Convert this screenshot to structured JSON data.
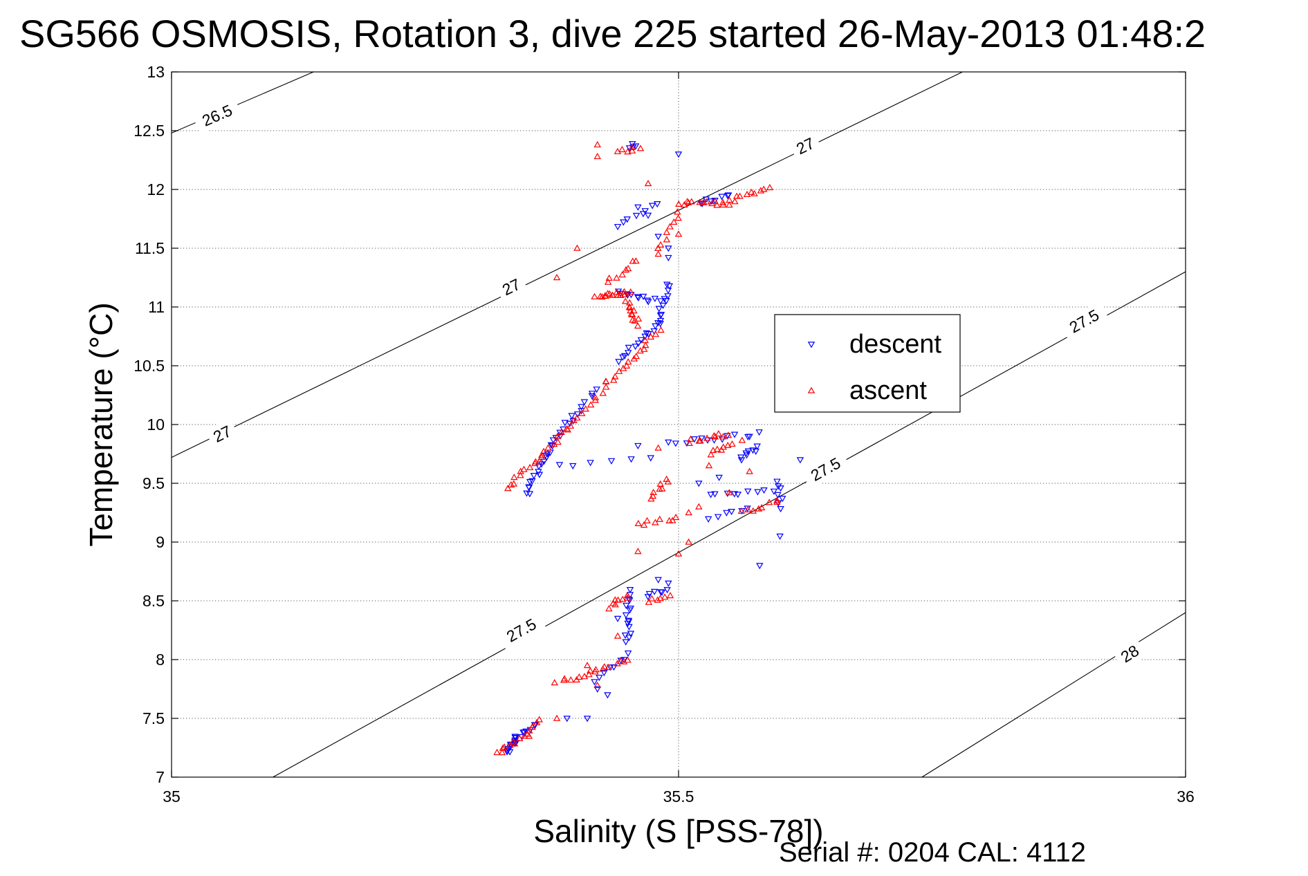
{
  "chart_data": {
    "type": "scatter",
    "title": "SG566 OSMOSIS, Rotation 3, dive 225 started 26-May-2013 01:48:2",
    "xlabel": "Salinity (S [PSS-78])",
    "ylabel": "Temperature (°C)",
    "xlim": [
      35,
      36
    ],
    "ylim": [
      7,
      13
    ],
    "grid": true,
    "x_ticks": [
      35,
      35.5,
      36
    ],
    "x_tick_labels": [
      "35",
      "35.5",
      "36"
    ],
    "y_ticks": [
      7,
      7.5,
      8,
      8.5,
      9,
      9.5,
      10,
      10.5,
      11,
      11.5,
      12,
      12.5,
      13
    ],
    "y_tick_labels": [
      "7",
      "7.5",
      "8",
      "8.5",
      "9",
      "9.5",
      "10",
      "10.5",
      "11",
      "11.5",
      "12",
      "12.5",
      "13"
    ],
    "footer": "Serial #: 0204  CAL: 4112",
    "legend": {
      "placement": "right-center",
      "entries": [
        {
          "name": "descent",
          "color": "#0000ff",
          "marker": "triangle-down"
        },
        {
          "name": "ascent",
          "color": "#ff0000",
          "marker": "triangle-up"
        }
      ]
    },
    "contours": [
      {
        "name": "26.5",
        "line": [
          [
            35,
            12.48
          ],
          [
            35.14,
            13
          ]
        ],
        "labels": [
          {
            "text": "26.5",
            "x": 35.045,
            "y": 12.63
          }
        ]
      },
      {
        "name": "27",
        "line": [
          [
            35,
            9.72
          ],
          [
            35.78,
            13
          ]
        ],
        "labels": [
          {
            "text": "27",
            "x": 35.05,
            "y": 9.92
          },
          {
            "text": "27",
            "x": 35.335,
            "y": 11.17
          },
          {
            "text": "27",
            "x": 35.625,
            "y": 12.37
          }
        ]
      },
      {
        "name": "27.5",
        "line": [
          [
            35.1,
            7
          ],
          [
            36,
            11.3
          ]
        ],
        "labels": [
          {
            "text": "27.5",
            "x": 35.345,
            "y": 8.25
          },
          {
            "text": "27.5",
            "x": 35.645,
            "y": 9.62
          },
          {
            "text": "27.5",
            "x": 35.9,
            "y": 10.88
          }
        ]
      },
      {
        "name": "28",
        "line": [
          [
            35.74,
            7
          ],
          [
            36,
            8.4
          ]
        ],
        "labels": [
          {
            "text": "28",
            "x": 35.945,
            "y": 8.05
          }
        ]
      }
    ],
    "series": [
      {
        "name": "descent",
        "color": "#0000ff",
        "marker": "triangle-down",
        "segments": [
          {
            "from": [
              35.33,
              7.2
            ],
            "to": [
              35.34,
              7.34
            ],
            "n": 14
          },
          {
            "from": [
              35.34,
              7.34
            ],
            "to": [
              35.36,
              7.45
            ],
            "n": 8
          },
          {
            "from": [
              35.42,
              7.82
            ],
            "to": [
              35.45,
              8.05
            ],
            "n": 8
          },
          {
            "from": [
              35.45,
              8.15
            ],
            "to": [
              35.45,
              8.58
            ],
            "n": 16
          },
          {
            "from": [
              35.47,
              8.55
            ],
            "to": [
              35.49,
              8.6
            ],
            "n": 6
          },
          {
            "from": [
              35.35,
              9.4
            ],
            "to": [
              35.37,
              9.75
            ],
            "n": 14
          },
          {
            "from": [
              35.37,
              9.75
            ],
            "to": [
              35.39,
              10.0
            ],
            "n": 10
          },
          {
            "from": [
              35.39,
              10.0
            ],
            "to": [
              35.42,
              10.3
            ],
            "n": 10
          },
          {
            "from": [
              35.44,
              10.55
            ],
            "to": [
              35.48,
              10.85
            ],
            "n": 14
          },
          {
            "from": [
              35.48,
              10.85
            ],
            "to": [
              35.49,
              11.2
            ],
            "n": 12
          },
          {
            "from": [
              35.44,
              11.12
            ],
            "to": [
              35.48,
              11.05
            ],
            "n": 12
          },
          {
            "from": [
              35.44,
              11.7
            ],
            "to": [
              35.48,
              11.88
            ],
            "n": 8
          },
          {
            "from": [
              35.52,
              11.88
            ],
            "to": [
              35.55,
              11.95
            ],
            "n": 8
          },
          {
            "from": [
              35.45,
              12.36
            ],
            "to": [
              35.46,
              12.38
            ],
            "n": 4
          },
          {
            "from": [
              35.38,
              9.65
            ],
            "to": [
              35.47,
              9.7
            ],
            "n": 6
          },
          {
            "from": [
              35.5,
              9.85
            ],
            "to": [
              35.58,
              9.92
            ],
            "n": 12
          },
          {
            "from": [
              35.56,
              9.7
            ],
            "to": [
              35.58,
              9.8
            ],
            "n": 8
          },
          {
            "from": [
              35.53,
              9.4
            ],
            "to": [
              35.6,
              9.45
            ],
            "n": 10
          },
          {
            "from": [
              35.6,
              9.3
            ],
            "to": [
              35.6,
              9.5
            ],
            "n": 6
          },
          {
            "from": [
              35.53,
              9.2
            ],
            "to": [
              35.57,
              9.3
            ],
            "n": 6
          }
        ],
        "points": [
          [
            35.46,
            11.85
          ],
          [
            35.47,
            11.78
          ],
          [
            35.48,
            11.6
          ],
          [
            35.49,
            11.5
          ],
          [
            35.49,
            11.42
          ],
          [
            35.5,
            12.3
          ],
          [
            35.6,
            9.05
          ],
          [
            35.58,
            8.8
          ],
          [
            35.39,
            7.5
          ],
          [
            35.41,
            7.5
          ],
          [
            35.43,
            7.7
          ],
          [
            35.42,
            7.75
          ],
          [
            35.48,
            8.68
          ],
          [
            35.49,
            8.65
          ],
          [
            35.44,
            8.35
          ],
          [
            35.52,
            9.5
          ],
          [
            35.54,
            9.55
          ],
          [
            35.62,
            9.7
          ],
          [
            35.49,
            9.85
          ],
          [
            35.46,
            9.82
          ]
        ]
      },
      {
        "name": "ascent",
        "color": "#ff0000",
        "marker": "triangle-up",
        "segments": [
          {
            "from": [
              35.32,
              7.2
            ],
            "to": [
              35.35,
              7.35
            ],
            "n": 10
          },
          {
            "from": [
              35.35,
              7.35
            ],
            "to": [
              35.36,
              7.5
            ],
            "n": 6
          },
          {
            "from": [
              35.38,
              7.8
            ],
            "to": [
              35.42,
              7.9
            ],
            "n": 10
          },
          {
            "from": [
              35.42,
              7.9
            ],
            "to": [
              35.45,
              8.0
            ],
            "n": 8
          },
          {
            "from": [
              35.43,
              8.45
            ],
            "to": [
              35.45,
              8.55
            ],
            "n": 8
          },
          {
            "from": [
              35.47,
              8.5
            ],
            "to": [
              35.49,
              8.55
            ],
            "n": 6
          },
          {
            "from": [
              35.33,
              9.45
            ],
            "to": [
              35.36,
              9.7
            ],
            "n": 10
          },
          {
            "from": [
              35.36,
              9.7
            ],
            "to": [
              35.39,
              9.95
            ],
            "n": 10
          },
          {
            "from": [
              35.39,
              9.95
            ],
            "to": [
              35.43,
              10.35
            ],
            "n": 12
          },
          {
            "from": [
              35.43,
              10.35
            ],
            "to": [
              35.48,
              10.8
            ],
            "n": 16
          },
          {
            "from": [
              35.46,
              10.85
            ],
            "to": [
              35.45,
              11.05
            ],
            "n": 12
          },
          {
            "from": [
              35.42,
              11.1
            ],
            "to": [
              35.45,
              11.12
            ],
            "n": 16
          },
          {
            "from": [
              35.43,
              11.2
            ],
            "to": [
              35.46,
              11.4
            ],
            "n": 8
          },
          {
            "from": [
              35.48,
              11.5
            ],
            "to": [
              35.5,
              11.8
            ],
            "n": 8
          },
          {
            "from": [
              35.5,
              11.88
            ],
            "to": [
              35.55,
              11.88
            ],
            "n": 14
          },
          {
            "from": [
              35.55,
              11.9
            ],
            "to": [
              35.59,
              12.02
            ],
            "n": 10
          },
          {
            "from": [
              35.44,
              12.32
            ],
            "to": [
              35.46,
              12.36
            ],
            "n": 6
          },
          {
            "from": [
              35.51,
              9.85
            ],
            "to": [
              35.55,
              9.92
            ],
            "n": 10
          },
          {
            "from": [
              35.53,
              9.75
            ],
            "to": [
              35.56,
              9.85
            ],
            "n": 8
          },
          {
            "from": [
              35.46,
              9.15
            ],
            "to": [
              35.5,
              9.2
            ],
            "n": 8
          },
          {
            "from": [
              35.47,
              9.35
            ],
            "to": [
              35.49,
              9.55
            ],
            "n": 8
          },
          {
            "from": [
              35.56,
              9.25
            ],
            "to": [
              35.6,
              9.35
            ],
            "n": 8
          }
        ],
        "points": [
          [
            35.42,
            12.38
          ],
          [
            35.42,
            12.28
          ],
          [
            35.47,
            12.05
          ],
          [
            35.5,
            11.62
          ],
          [
            35.48,
            11.45
          ],
          [
            35.4,
            11.5
          ],
          [
            35.38,
            11.25
          ],
          [
            35.55,
            9.42
          ],
          [
            35.52,
            9.3
          ],
          [
            35.51,
            9.0
          ],
          [
            35.5,
            8.9
          ],
          [
            35.46,
            8.92
          ],
          [
            35.38,
            7.5
          ],
          [
            35.42,
            7.78
          ],
          [
            35.41,
            7.95
          ],
          [
            35.44,
            8.2
          ],
          [
            35.53,
            9.65
          ],
          [
            35.51,
            9.25
          ],
          [
            35.48,
            9.8
          ],
          [
            35.57,
            9.6
          ]
        ]
      }
    ]
  }
}
